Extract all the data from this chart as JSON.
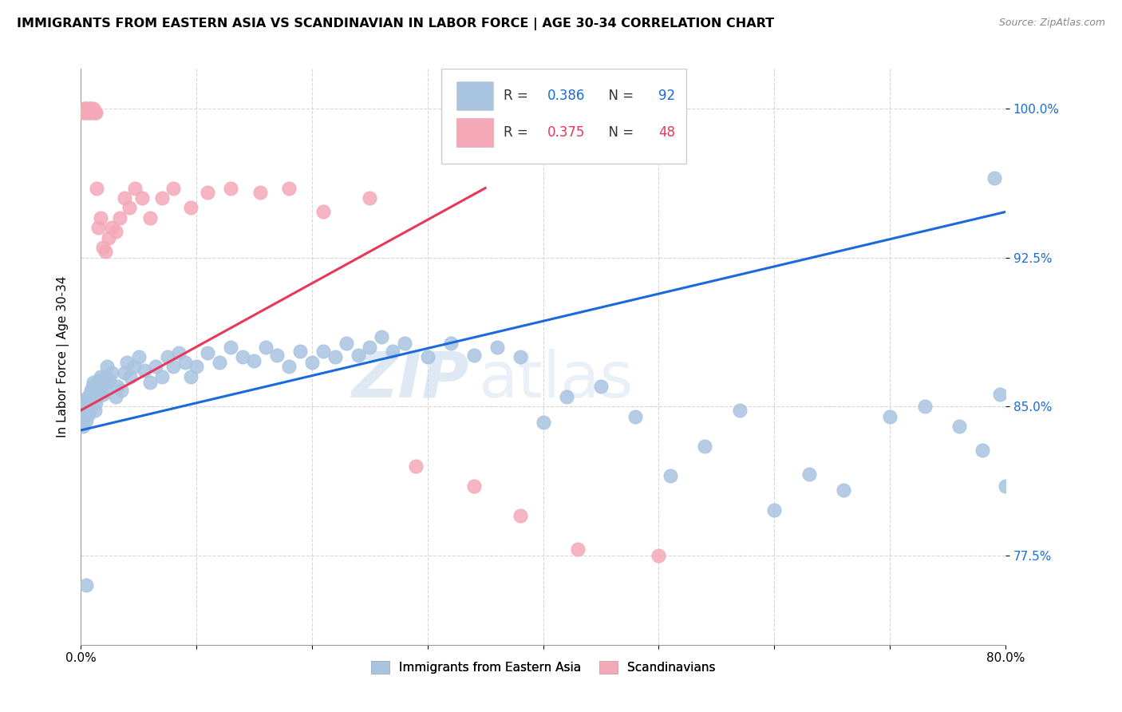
{
  "title": "IMMIGRANTS FROM EASTERN ASIA VS SCANDINAVIAN IN LABOR FORCE | AGE 30-34 CORRELATION CHART",
  "source": "Source: ZipAtlas.com",
  "ylabel": "In Labor Force | Age 30-34",
  "xlim": [
    0.0,
    0.8
  ],
  "ylim": [
    0.73,
    1.02
  ],
  "yticks": [
    0.775,
    0.85,
    0.925,
    1.0
  ],
  "ytick_labels": [
    "77.5%",
    "85.0%",
    "92.5%",
    "100.0%"
  ],
  "xticks": [
    0.0,
    0.1,
    0.2,
    0.3,
    0.4,
    0.5,
    0.6,
    0.7,
    0.8
  ],
  "xtick_labels": [
    "0.0%",
    "",
    "",
    "",
    "",
    "",
    "",
    "",
    "80.0%"
  ],
  "blue_R": 0.386,
  "blue_N": 92,
  "pink_R": 0.375,
  "pink_N": 48,
  "blue_color": "#a8c4e0",
  "pink_color": "#f4a8b8",
  "blue_line_color": "#1a6adb",
  "pink_line_color": "#e8385a",
  "legend_label_blue": "Immigrants from Eastern Asia",
  "legend_label_pink": "Scandinavians",
  "watermark_zip": "ZIP",
  "watermark_atlas": "atlas",
  "blue_x": [
    0.002,
    0.003,
    0.004,
    0.005,
    0.005,
    0.006,
    0.006,
    0.007,
    0.007,
    0.008,
    0.008,
    0.009,
    0.009,
    0.01,
    0.01,
    0.011,
    0.011,
    0.012,
    0.012,
    0.013,
    0.013,
    0.014,
    0.015,
    0.016,
    0.017,
    0.018,
    0.019,
    0.02,
    0.021,
    0.022,
    0.023,
    0.025,
    0.027,
    0.03,
    0.032,
    0.035,
    0.038,
    0.04,
    0.043,
    0.046,
    0.05,
    0.055,
    0.06,
    0.065,
    0.07,
    0.075,
    0.08,
    0.085,
    0.09,
    0.095,
    0.1,
    0.11,
    0.12,
    0.13,
    0.14,
    0.15,
    0.16,
    0.17,
    0.18,
    0.19,
    0.2,
    0.21,
    0.22,
    0.23,
    0.24,
    0.25,
    0.26,
    0.27,
    0.28,
    0.3,
    0.32,
    0.34,
    0.36,
    0.38,
    0.4,
    0.42,
    0.45,
    0.48,
    0.51,
    0.54,
    0.57,
    0.6,
    0.63,
    0.66,
    0.7,
    0.73,
    0.76,
    0.78,
    0.795,
    0.8,
    0.005,
    0.79
  ],
  "blue_y": [
    0.84,
    0.845,
    0.85,
    0.843,
    0.852,
    0.848,
    0.855,
    0.846,
    0.854,
    0.849,
    0.856,
    0.851,
    0.858,
    0.853,
    0.86,
    0.855,
    0.862,
    0.857,
    0.848,
    0.852,
    0.86,
    0.855,
    0.863,
    0.857,
    0.865,
    0.86,
    0.856,
    0.862,
    0.858,
    0.865,
    0.87,
    0.863,
    0.867,
    0.855,
    0.86,
    0.858,
    0.867,
    0.872,
    0.865,
    0.87,
    0.875,
    0.868,
    0.862,
    0.87,
    0.865,
    0.875,
    0.87,
    0.877,
    0.872,
    0.865,
    0.87,
    0.877,
    0.872,
    0.88,
    0.875,
    0.873,
    0.88,
    0.876,
    0.87,
    0.878,
    0.872,
    0.878,
    0.875,
    0.882,
    0.876,
    0.88,
    0.885,
    0.878,
    0.882,
    0.875,
    0.882,
    0.876,
    0.88,
    0.875,
    0.842,
    0.855,
    0.86,
    0.845,
    0.815,
    0.83,
    0.848,
    0.798,
    0.816,
    0.808,
    0.845,
    0.85,
    0.84,
    0.828,
    0.856,
    0.81,
    0.76,
    0.965
  ],
  "pink_x": [
    0.002,
    0.003,
    0.003,
    0.004,
    0.004,
    0.005,
    0.005,
    0.006,
    0.006,
    0.007,
    0.007,
    0.008,
    0.008,
    0.009,
    0.009,
    0.01,
    0.01,
    0.011,
    0.012,
    0.013,
    0.014,
    0.015,
    0.017,
    0.019,
    0.021,
    0.024,
    0.027,
    0.03,
    0.034,
    0.038,
    0.042,
    0.047,
    0.053,
    0.06,
    0.07,
    0.08,
    0.095,
    0.11,
    0.13,
    0.155,
    0.18,
    0.21,
    0.25,
    0.29,
    0.34,
    0.38,
    0.43,
    0.5
  ],
  "pink_y": [
    0.998,
    0.999,
    1.0,
    0.998,
    1.0,
    0.999,
    1.0,
    0.998,
    0.999,
    1.0,
    0.999,
    0.998,
    1.0,
    0.999,
    1.0,
    0.998,
    0.999,
    1.0,
    0.998,
    0.998,
    0.96,
    0.94,
    0.945,
    0.93,
    0.928,
    0.935,
    0.94,
    0.938,
    0.945,
    0.955,
    0.95,
    0.96,
    0.955,
    0.945,
    0.955,
    0.96,
    0.95,
    0.958,
    0.96,
    0.958,
    0.96,
    0.948,
    0.955,
    0.82,
    0.81,
    0.795,
    0.778,
    0.775
  ],
  "blue_trend_x": [
    0.0,
    0.8
  ],
  "blue_trend_y": [
    0.838,
    0.948
  ],
  "pink_trend_x": [
    0.0,
    0.35
  ],
  "pink_trend_y": [
    0.848,
    0.96
  ]
}
